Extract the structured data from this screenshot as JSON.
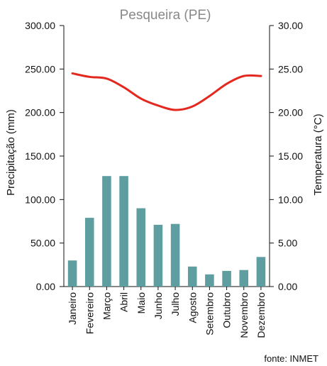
{
  "chart_data": {
    "type": "bar",
    "title": "Pesqueira (PE)",
    "title_color": "#888888",
    "source": "fonte: INMET",
    "categories": [
      "Janeiro",
      "Fevereiro",
      "Março",
      "Abril",
      "Maio",
      "Junho",
      "Julho",
      "Agosto",
      "Setembro",
      "Outubro",
      "Novembro",
      "Dezembro"
    ],
    "series": [
      {
        "name": "Precipitação",
        "type": "bar",
        "axis": "left",
        "color": "#5f9ea0",
        "values": [
          30,
          79,
          127,
          127,
          90,
          71,
          72,
          23,
          14,
          18,
          19,
          34
        ]
      },
      {
        "name": "Temperatura",
        "type": "line",
        "axis": "right",
        "color": "#e3291f",
        "values": [
          24.5,
          24.1,
          23.9,
          22.9,
          21.6,
          20.8,
          20.3,
          20.7,
          21.9,
          23.3,
          24.2,
          24.2
        ]
      }
    ],
    "ylabel": "Precipitação (mm)",
    "ylim": [
      0,
      300
    ],
    "yticks": [
      "0.00",
      "50.00",
      "100.00",
      "150.00",
      "200.00",
      "250.00",
      "300.00"
    ],
    "y2label": "Temperatura (°C)",
    "y2lim": [
      0,
      30
    ],
    "y2ticks": [
      "0.00",
      "5.00",
      "10.00",
      "15.00",
      "20.00",
      "25.00",
      "30.00"
    ],
    "grid": false,
    "legend": "none"
  }
}
